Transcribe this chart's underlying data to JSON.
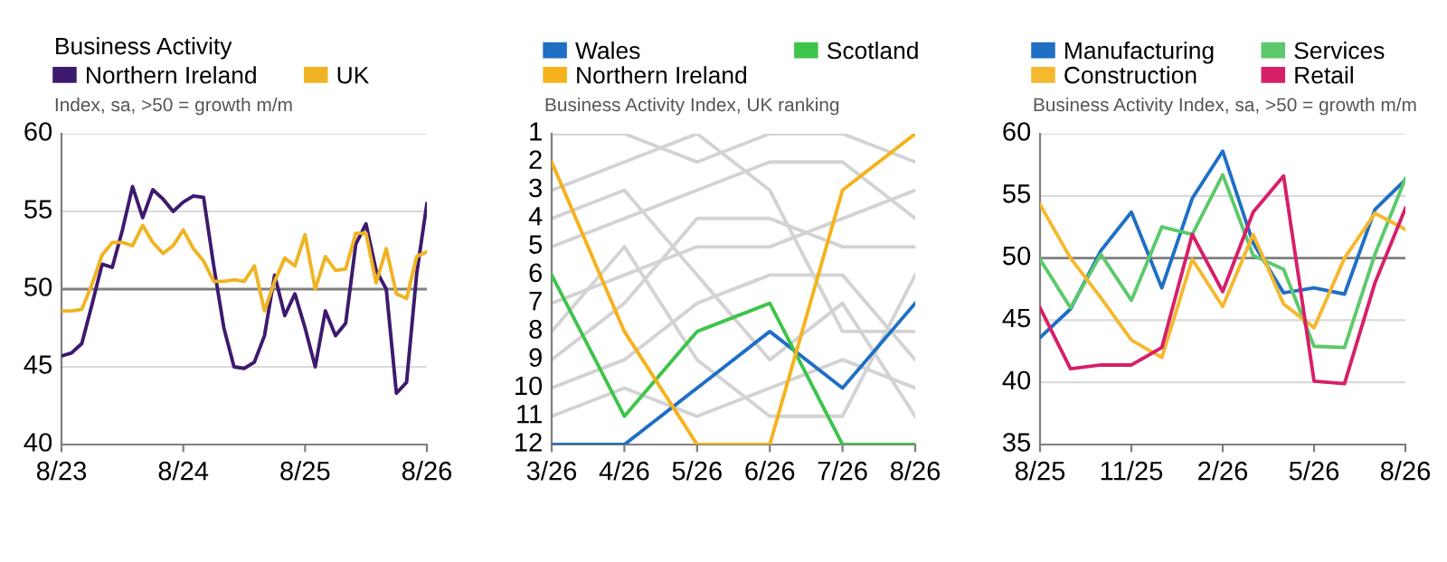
{
  "chart_data": [
    {
      "type": "line",
      "title": "Business Activity",
      "subtitle": "Index, sa, >50 = growth m/m",
      "legend": "top",
      "grid": "y",
      "categories": [
        "8/23",
        null,
        null,
        null,
        null,
        null,
        null,
        null,
        null,
        null,
        null,
        null,
        "8/24",
        null,
        null,
        null,
        null,
        null,
        null,
        null,
        null,
        null,
        null,
        null,
        "8/25",
        null,
        null,
        null,
        null,
        null,
        null,
        null,
        null,
        null,
        null,
        null,
        "8/26"
      ],
      "ylim": [
        40,
        60
      ],
      "yticks": [
        40,
        45,
        50,
        55,
        60
      ],
      "ref_lines": [
        {
          "axis": "y",
          "value": 50,
          "color": "#7f7f7f"
        }
      ],
      "series": [
        {
          "name": "Northern Ireland",
          "color": "#3d1a6e",
          "values": [
            45.7,
            45.9,
            46.5,
            49,
            51.6,
            51.4,
            53.8,
            56.6,
            54.6,
            56.4,
            55.8,
            55,
            55.6,
            56,
            55.9,
            51.5,
            47.5,
            45,
            44.9,
            45.3,
            47,
            50.9,
            48.3,
            49.7,
            47.5,
            45,
            48.6,
            47,
            47.8,
            52.9,
            54.2,
            51.2,
            50,
            43.3,
            44,
            51,
            55.5
          ]
        },
        {
          "name": "UK",
          "color": "#f0b323",
          "values": [
            48.6,
            48.6,
            48.7,
            50.3,
            52.2,
            53,
            53,
            52.8,
            54.1,
            53,
            52.3,
            52.8,
            53.8,
            52.6,
            51.8,
            50.5,
            50.5,
            50.6,
            50.5,
            51.5,
            48.6,
            50.5,
            52,
            51.5,
            53.5,
            50,
            52.1,
            51.2,
            51.3,
            53.6,
            53.6,
            50.4,
            52.6,
            49.7,
            49.4,
            52.1,
            52.4
          ]
        }
      ]
    },
    {
      "type": "line",
      "subtitle": "Business Activity Index, UK ranking",
      "legend": "top",
      "grid": false,
      "categories": [
        "3/26",
        "4/26",
        "5/26",
        "6/26",
        "7/26",
        "8/26"
      ],
      "ylim": [
        12,
        1
      ],
      "yticks": [
        1,
        2,
        3,
        4,
        5,
        6,
        7,
        8,
        9,
        10,
        11,
        12
      ],
      "series": [
        {
          "color": "#d3d3d3",
          "values": [
            3,
            2,
            1,
            3,
            8,
            8
          ]
        },
        {
          "color": "#d3d3d3",
          "values": [
            1,
            1,
            2,
            1,
            1,
            2
          ]
        },
        {
          "color": "#d3d3d3",
          "values": [
            5,
            4,
            3,
            2,
            2,
            4
          ]
        },
        {
          "color": "#d3d3d3",
          "values": [
            7,
            6,
            5,
            5,
            4,
            3
          ]
        },
        {
          "color": "#d3d3d3",
          "values": [
            4,
            3,
            6,
            9,
            7,
            11
          ]
        },
        {
          "color": "#d3d3d3",
          "values": [
            8,
            5,
            9,
            11,
            11,
            6
          ]
        },
        {
          "color": "#d3d3d3",
          "values": [
            9,
            7,
            4,
            4,
            5,
            5
          ]
        },
        {
          "color": "#d3d3d3",
          "values": [
            10,
            9,
            7,
            6,
            6,
            9
          ]
        },
        {
          "color": "#d3d3d3",
          "values": [
            11,
            10,
            11,
            10,
            9,
            10
          ]
        },
        {
          "name": "Wales",
          "color": "#1f6fc5",
          "values": [
            12,
            12,
            10,
            8,
            10,
            7
          ]
        },
        {
          "name": "Scotland",
          "color": "#3ec44a",
          "values": [
            6,
            11,
            8,
            7,
            12,
            12
          ]
        },
        {
          "name": "Northern Ireland",
          "color": "#f5b21b",
          "values": [
            2,
            8,
            12,
            12,
            3,
            1
          ]
        }
      ]
    },
    {
      "type": "line",
      "subtitle": "Business Activity Index, sa, >50 = growth m/m",
      "legend": "top",
      "grid": "y",
      "categories": [
        "8/25",
        null,
        null,
        "11/25",
        null,
        null,
        "2/26",
        null,
        null,
        "5/26",
        null,
        null,
        "8/26"
      ],
      "ylim": [
        35,
        60
      ],
      "yticks": [
        35,
        40,
        45,
        50,
        55,
        60
      ],
      "ref_lines": [
        {
          "axis": "y",
          "value": 50,
          "color": "#7f7f7f"
        }
      ],
      "series": [
        {
          "name": "Manufacturing",
          "color": "#1f6fc5",
          "values": [
            43.6,
            45.9,
            50.6,
            53.7,
            47.6,
            54.8,
            58.6,
            51.2,
            47.2,
            47.6,
            47.1,
            53.9,
            56.3
          ]
        },
        {
          "name": "Services",
          "color": "#5cc96b",
          "values": [
            49.9,
            46,
            50.3,
            46.6,
            52.5,
            51.9,
            56.7,
            50.2,
            49.1,
            42.9,
            42.8,
            50.3,
            56.4
          ]
        },
        {
          "name": "Construction",
          "color": "#f5b82e",
          "values": [
            54.3,
            50,
            46.8,
            43.4,
            42,
            49.9,
            46.1,
            51.9,
            46.3,
            44.4,
            50,
            53.6,
            52.3
          ]
        },
        {
          "name": "Retail",
          "color": "#d61f69",
          "values": [
            46,
            41.1,
            41.4,
            41.4,
            42.8,
            51.9,
            47.3,
            53.7,
            56.6,
            40.1,
            39.9,
            48,
            54
          ]
        }
      ]
    }
  ]
}
